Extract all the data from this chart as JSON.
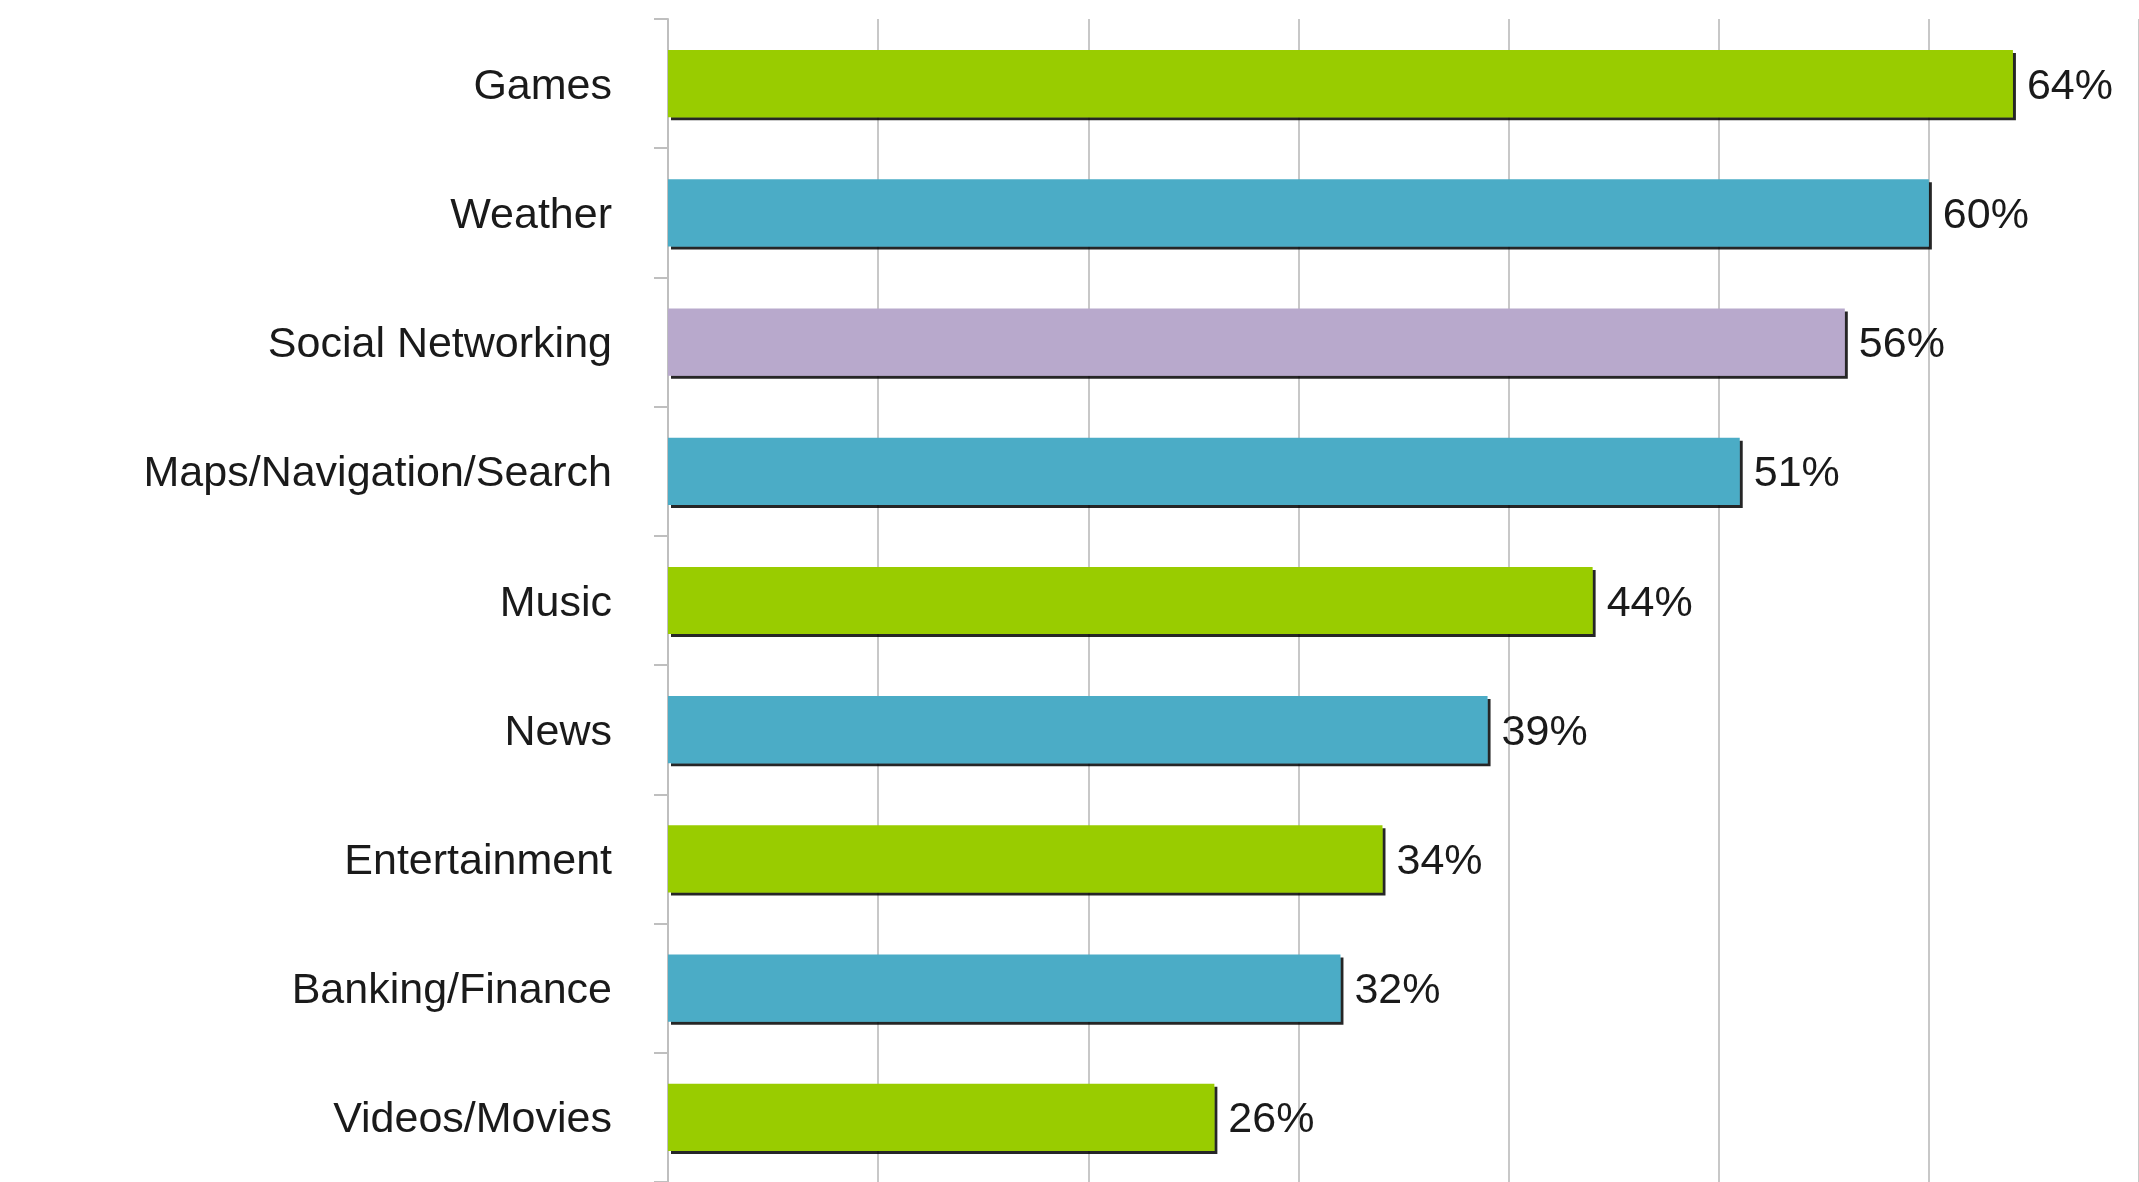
{
  "chart_data": {
    "type": "bar",
    "orientation": "horizontal",
    "categories": [
      "Games",
      "Weather",
      "Social Networking",
      "Maps/Navigation/Search",
      "Music",
      "News",
      "Entertainment",
      "Banking/Finance",
      "Videos/Movies"
    ],
    "values": [
      64,
      60,
      56,
      51,
      44,
      39,
      34,
      32,
      26
    ],
    "value_labels": [
      "64%",
      "60%",
      "56%",
      "51%",
      "44%",
      "39%",
      "34%",
      "32%",
      "26%"
    ],
    "colors": [
      "#99cc00",
      "#4bacc6",
      "#b8a9cc",
      "#4bacc6",
      "#99cc00",
      "#4bacc6",
      "#99cc00",
      "#4bacc6",
      "#99cc00"
    ],
    "xlim": [
      0,
      70
    ],
    "xticks": [
      {
        "value": 0,
        "label": null
      },
      {
        "value": 10,
        "label": null
      },
      {
        "value": 20,
        "label": null
      },
      {
        "value": 30,
        "label": null
      },
      {
        "value": 40,
        "label": null
      },
      {
        "value": 50,
        "label": null
      },
      {
        "value": 60,
        "label": null
      },
      {
        "value": 70,
        "label": null
      }
    ],
    "grid": "x",
    "tick_labels": "y"
  }
}
